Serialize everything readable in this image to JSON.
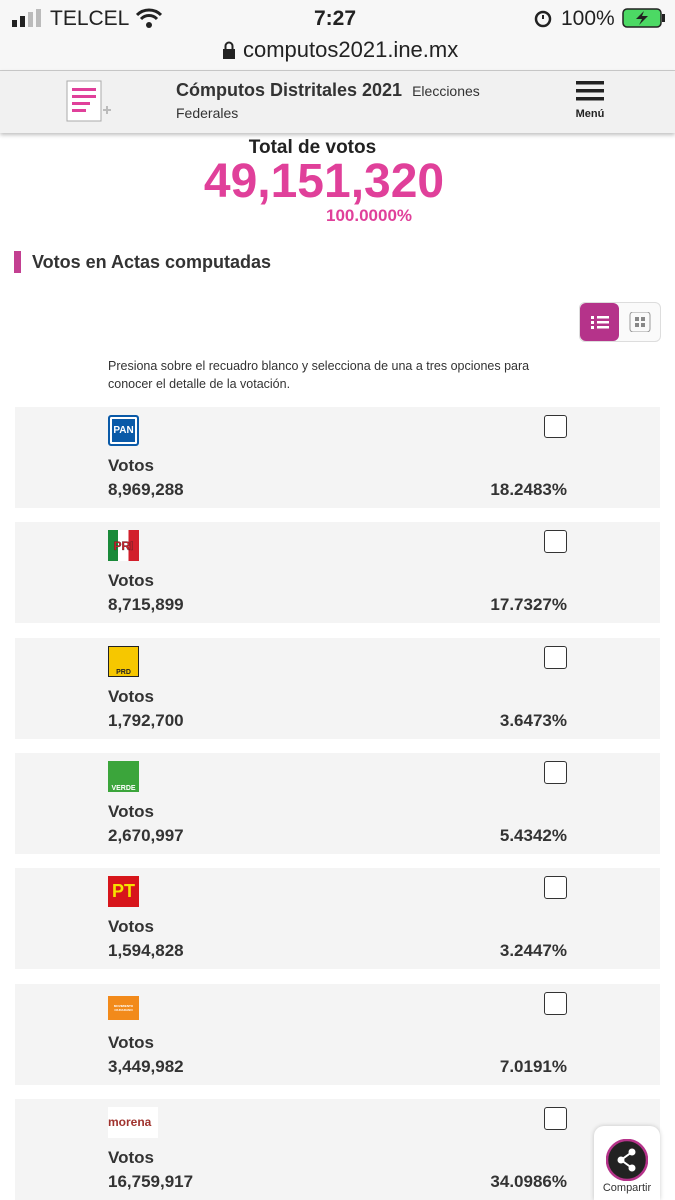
{
  "status_bar": {
    "carrier": "TELCEL",
    "time": "7:27",
    "battery": "100%"
  },
  "browser": {
    "url": "computos2021.ine.mx"
  },
  "header": {
    "title": "Cómputos Distritales 2021",
    "subtitle": "Elecciones Federales",
    "menu": "Menú"
  },
  "total": {
    "label": "Total de votos",
    "votes": "49,151,320",
    "percent": "100.0000%"
  },
  "section": {
    "title": "Votos en Actas computadas",
    "instructions": "Presiona sobre el recuadro blanco y selecciona de una a tres opciones para conocer el detalle de la votación."
  },
  "parties": [
    {
      "logo": "PAN",
      "label": "Votos",
      "votes": "8,969,288",
      "percent": "18.2483%"
    },
    {
      "logo": "PRI",
      "label": "Votos",
      "votes": "8,715,899",
      "percent": "17.7327%"
    },
    {
      "logo": "PRD",
      "label": "Votos",
      "votes": "1,792,700",
      "percent": "3.6473%"
    },
    {
      "logo": "VERDE",
      "label": "Votos",
      "votes": "2,670,997",
      "percent": "5.4342%"
    },
    {
      "logo": "PT",
      "label": "Votos",
      "votes": "1,594,828",
      "percent": "3.2447%"
    },
    {
      "logo": "MOVIMIENTO CIUDADANO",
      "label": "Votos",
      "votes": "3,449,982",
      "percent": "7.0191%"
    },
    {
      "logo": "morena",
      "label": "Votos",
      "votes": "16,759,917",
      "percent": "34.0986%"
    }
  ],
  "share": "Compartir"
}
